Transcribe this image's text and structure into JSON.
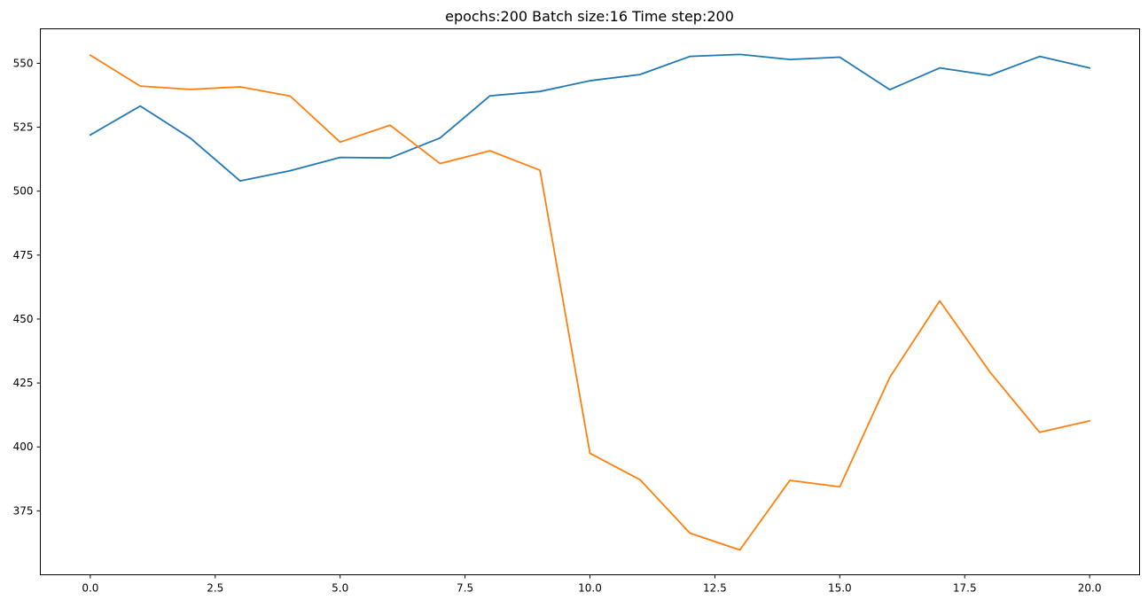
{
  "chart_data": {
    "type": "line",
    "title": "epochs:200   Batch size:16    Time step:200",
    "xlabel": "",
    "ylabel": "",
    "x": [
      0,
      1,
      2,
      3,
      4,
      5,
      6,
      7,
      8,
      9,
      10,
      11,
      12,
      13,
      14,
      15,
      16,
      17,
      18,
      19,
      20
    ],
    "xlim": [
      -1.0,
      21.0
    ],
    "ylim": [
      350.0,
      563.5
    ],
    "x_ticks": [
      0.0,
      2.5,
      5.0,
      7.5,
      10.0,
      12.5,
      15.0,
      17.5,
      20.0
    ],
    "x_tick_labels": [
      "0.0",
      "2.5",
      "5.0",
      "7.5",
      "10.0",
      "12.5",
      "15.0",
      "17.5",
      "20.0"
    ],
    "y_ticks": [
      375,
      400,
      425,
      450,
      475,
      500,
      525,
      550
    ],
    "y_tick_labels": [
      "375",
      "400",
      "425",
      "450",
      "475",
      "500",
      "525",
      "550"
    ],
    "grid": false,
    "legend": "none",
    "series": [
      {
        "color": "#1f77b4",
        "values": [
          522,
          533.3,
          520.8,
          504,
          508,
          513.2,
          513,
          520.8,
          537.3,
          539,
          543.2,
          545.6,
          552.7,
          553.5,
          551.5,
          552.4,
          539.7,
          548.2,
          545.3,
          552.7,
          548.2
        ]
      },
      {
        "color": "#ff7f0e",
        "values": [
          553.2,
          541.1,
          539.8,
          540.8,
          537.2,
          519.2,
          525.8,
          510.8,
          515.8,
          508.2,
          397.5,
          387.2,
          366.3,
          359.7,
          386.9,
          384.4,
          427.2,
          457.1,
          429.4,
          405.7,
          410.2
        ]
      }
    ]
  }
}
